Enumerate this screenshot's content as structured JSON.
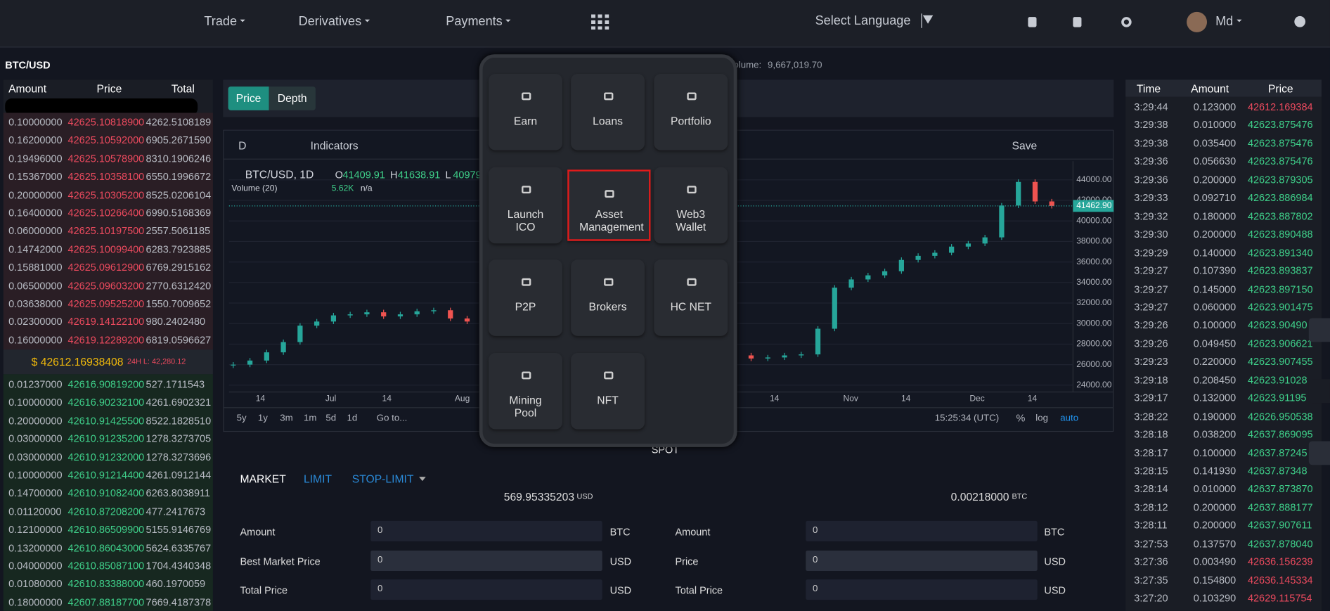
{
  "nav": {
    "items": [
      "Trade",
      "Derivatives",
      "Payments"
    ],
    "language": "Select Language",
    "user": "Md"
  },
  "pair": "BTC/USD",
  "volume": {
    "label": "Volume:",
    "value": "9,667,019.70"
  },
  "order_book": {
    "headers": [
      "Amount",
      "Price",
      "Total"
    ],
    "asks": [
      [
        "0.10000000",
        "42625.10818900",
        "4262.5108189"
      ],
      [
        "0.16200000",
        "42625.10592000",
        "6905.2671590"
      ],
      [
        "0.19496000",
        "42625.10578900",
        "8310.1906246"
      ],
      [
        "0.15367000",
        "42625.10358100",
        "6550.1996672"
      ],
      [
        "0.20000000",
        "42625.10305200",
        "8525.0206104"
      ],
      [
        "0.16400000",
        "42625.10266400",
        "6990.5168369"
      ],
      [
        "0.06000000",
        "42625.10197500",
        "2557.5061185"
      ],
      [
        "0.14742000",
        "42625.10099400",
        "6283.7923885"
      ],
      [
        "0.15881000",
        "42625.09612900",
        "6769.2915162"
      ],
      [
        "0.06500000",
        "42625.09603200",
        "2770.6312420"
      ],
      [
        "0.03638000",
        "42625.09525200",
        "1550.7009652"
      ],
      [
        "0.02300000",
        "42619.14122100",
        "980.2402480"
      ],
      [
        "0.16000000",
        "42619.12289200",
        "6819.0596627"
      ]
    ],
    "last_price": "$ 42612.16938408",
    "low_24h": "24H L: 42,280.12",
    "bids": [
      [
        "0.01237000",
        "42616.90819200",
        "527.1711543"
      ],
      [
        "0.10000000",
        "42616.90232100",
        "4261.6902321"
      ],
      [
        "0.20000000",
        "42610.91425500",
        "8522.1828510"
      ],
      [
        "0.03000000",
        "42610.91235200",
        "1278.3273705"
      ],
      [
        "0.03000000",
        "42610.91232000",
        "1278.3273696"
      ],
      [
        "0.10000000",
        "42610.91214400",
        "4261.0912144"
      ],
      [
        "0.14700000",
        "42610.91082400",
        "6263.8038911"
      ],
      [
        "0.01120000",
        "42610.87208200",
        "477.2417673"
      ],
      [
        "0.12100000",
        "42610.86509900",
        "5155.9146769"
      ],
      [
        "0.13200000",
        "42610.86043000",
        "5624.6335767"
      ],
      [
        "0.04000000",
        "42610.85087100",
        "1704.4340348"
      ],
      [
        "0.01080000",
        "42610.83388000",
        "460.1970059"
      ],
      [
        "0.18000000",
        "42607.88187700",
        "7669.4187378"
      ]
    ]
  },
  "chart_tabs": [
    "Price",
    "Depth"
  ],
  "chart": {
    "type": "candlestick",
    "toolbar": {
      "interval": "D",
      "indicators": "Indicators",
      "save": "Save"
    },
    "symbol": "BTC/USD, 1D",
    "ohlc": [
      {
        "label": "O",
        "value": "41409.91"
      },
      {
        "label": "H",
        "value": "41638.91"
      },
      {
        "label": "L",
        "value": "40979"
      }
    ],
    "volume_study": "Volume (20)",
    "volume_value": "5.62K",
    "volume_na": "n/a",
    "closes": [
      26000,
      26400,
      27200,
      28200,
      29800,
      30200,
      30800,
      30900,
      31100,
      30700,
      30900,
      31200,
      31300,
      30500,
      30200,
      30000,
      29800,
      29700,
      29500,
      29400,
      29300,
      29200,
      29000,
      28500,
      28000,
      27600,
      27300,
      27000,
      26900,
      26800,
      26900,
      26600,
      26700,
      26900,
      27000,
      29500,
      33500,
      34300,
      34700,
      35100,
      36200,
      36600,
      36900,
      37500,
      37800,
      38400,
      41500,
      43800,
      41900,
      41460
    ],
    "up_color": "#26a69a",
    "down_color": "#ef5350",
    "ylim": [
      23340,
      45820
    ],
    "yticks": [
      {
        "value": 24000,
        "label": "24000.00"
      },
      {
        "value": 26000,
        "label": "26000.00"
      },
      {
        "value": 28000,
        "label": "28000.00"
      },
      {
        "value": 30000,
        "label": "30000.00"
      },
      {
        "value": 32000,
        "label": "32000.00"
      },
      {
        "value": 34000,
        "label": "34000.00"
      },
      {
        "value": 36000,
        "label": "36000.00"
      },
      {
        "value": 38000,
        "label": "38000.00"
      },
      {
        "value": 40000,
        "label": "40000.00"
      },
      {
        "value": 42000,
        "label": "42000.00"
      },
      {
        "value": 44000,
        "label": "44000.00"
      }
    ],
    "last": {
      "value": 41462.9,
      "label": "41462.90"
    },
    "x_labels": [
      "14",
      "Jul",
      "14",
      "Aug",
      "14",
      "Nov",
      "14",
      "Dec",
      "14"
    ],
    "ranges": [
      "5y",
      "1y",
      "3m",
      "1m",
      "5d",
      "1d"
    ],
    "goto": "Go to...",
    "time": "15:25:34 (UTC)",
    "percent": "%",
    "log": "log",
    "auto": "auto"
  },
  "modal": {
    "items": [
      "Earn",
      "Loans",
      "Portfolio",
      "Launch ICO",
      "Asset Management",
      "Web3 Wallet",
      "P2P",
      "Brokers",
      "HC NET",
      "Mining Pool",
      "NFT"
    ],
    "selected": 4
  },
  "spot": "SPOT",
  "order_types": [
    "MARKET",
    "LIMIT",
    "STOP-LIMIT"
  ],
  "balances": [
    {
      "value": "569.95335203",
      "unit": "USD"
    },
    {
      "value": "0.00218000",
      "unit": "BTC"
    }
  ],
  "buy_form": [
    {
      "label": "Amount",
      "value": "0",
      "unit": "BTC"
    },
    {
      "label": "Best Market Price",
      "value": "0",
      "unit": "USD"
    },
    {
      "label": "Total Price",
      "value": "0",
      "unit": "USD"
    }
  ],
  "sell_form": [
    {
      "label": "Amount",
      "value": "0",
      "unit": "BTC"
    },
    {
      "label": "Price",
      "value": "0",
      "unit": "USD"
    },
    {
      "label": "Total Price",
      "value": "0",
      "unit": "USD"
    }
  ],
  "trades": {
    "headers": [
      "Time",
      "Amount",
      "Price"
    ],
    "rows": [
      {
        "time": "3:29:44",
        "amount": "0.123000",
        "price": "42612.169384",
        "color": "#ec4a5e"
      },
      {
        "time": "3:29:38",
        "amount": "0.010000",
        "price": "42623.875476",
        "color": "#3fd08a"
      },
      {
        "time": "3:29:38",
        "amount": "0.035400",
        "price": "42623.875476",
        "color": "#3fd08a"
      },
      {
        "time": "3:29:36",
        "amount": "0.056630",
        "price": "42623.875476",
        "color": "#3fd08a"
      },
      {
        "time": "3:29:36",
        "amount": "0.200000",
        "price": "42623.879305",
        "color": "#3fd08a"
      },
      {
        "time": "3:29:33",
        "amount": "0.092710",
        "price": "42623.886984",
        "color": "#3fd08a"
      },
      {
        "time": "3:29:32",
        "amount": "0.180000",
        "price": "42623.887802",
        "color": "#3fd08a"
      },
      {
        "time": "3:29:30",
        "amount": "0.200000",
        "price": "42623.890488",
        "color": "#3fd08a"
      },
      {
        "time": "3:29:29",
        "amount": "0.140000",
        "price": "42623.891340",
        "color": "#3fd08a"
      },
      {
        "time": "3:29:27",
        "amount": "0.107390",
        "price": "42623.893837",
        "color": "#3fd08a"
      },
      {
        "time": "3:29:27",
        "amount": "0.145000",
        "price": "42623.897150",
        "color": "#3fd08a"
      },
      {
        "time": "3:29:27",
        "amount": "0.060000",
        "price": "42623.901475",
        "color": "#3fd08a"
      },
      {
        "time": "3:29:26",
        "amount": "0.100000",
        "price": "42623.90490",
        "color": "#3fd08a"
      },
      {
        "time": "3:29:26",
        "amount": "0.049450",
        "price": "42623.906621",
        "color": "#3fd08a"
      },
      {
        "time": "3:29:23",
        "amount": "0.220000",
        "price": "42623.907455",
        "color": "#3fd08a"
      },
      {
        "time": "3:29:18",
        "amount": "0.208450",
        "price": "42623.91028",
        "color": "#3fd08a"
      },
      {
        "time": "3:29:17",
        "amount": "0.132000",
        "price": "42623.91195",
        "color": "#3fd08a"
      },
      {
        "time": "3:28:22",
        "amount": "0.190000",
        "price": "42626.950538",
        "color": "#3fd08a"
      },
      {
        "time": "3:28:18",
        "amount": "0.038200",
        "price": "42637.869095",
        "color": "#3fd08a"
      },
      {
        "time": "3:28:17",
        "amount": "0.100000",
        "price": "42637.87245",
        "color": "#3fd08a"
      },
      {
        "time": "3:28:15",
        "amount": "0.141930",
        "price": "42637.87348",
        "color": "#3fd08a"
      },
      {
        "time": "3:28:14",
        "amount": "0.010000",
        "price": "42637.873870",
        "color": "#3fd08a"
      },
      {
        "time": "3:28:12",
        "amount": "0.200000",
        "price": "42637.888177",
        "color": "#3fd08a"
      },
      {
        "time": "3:28:11",
        "amount": "0.200000",
        "price": "42637.907611",
        "color": "#3fd08a"
      },
      {
        "time": "3:27:53",
        "amount": "0.137570",
        "price": "42637.878040",
        "color": "#3fd08a"
      },
      {
        "time": "3:27:36",
        "amount": "0.003490",
        "price": "42636.156239",
        "color": "#ec4a5e"
      },
      {
        "time": "3:27:35",
        "amount": "0.154800",
        "price": "42636.145334",
        "color": "#ec4a5e"
      },
      {
        "time": "3:27:20",
        "amount": "0.103290",
        "price": "42629.115754",
        "color": "#ec4a5e"
      }
    ]
  }
}
